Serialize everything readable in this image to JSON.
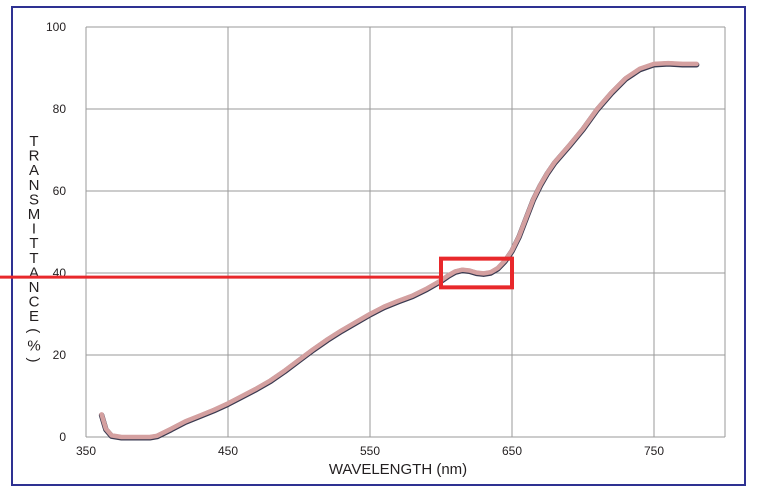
{
  "chart_data": {
    "type": "line",
    "title": "",
    "xlabel": "WAVELENGTH (nm)",
    "ylabel_letters": [
      "T",
      "R",
      "A",
      "N",
      "S",
      "M",
      "I",
      "T",
      "T",
      "A",
      "N",
      "C",
      "E",
      "(",
      "%",
      ")"
    ],
    "xlim": [
      350,
      800
    ],
    "ylim": [
      0,
      100
    ],
    "xticks": [
      "350",
      "450",
      "550",
      "650",
      "750"
    ],
    "yticks": [
      "0",
      "20",
      "40",
      "60",
      "80",
      "100"
    ],
    "grid": true,
    "series": [
      {
        "line_color": "#d4a0a0",
        "shadow_color": "#3a3a50",
        "points": [
          [
            361,
            5.5
          ],
          [
            364,
            2
          ],
          [
            368,
            0.4
          ],
          [
            375,
            0
          ],
          [
            385,
            0
          ],
          [
            395,
            0
          ],
          [
            400,
            0.3
          ],
          [
            410,
            2
          ],
          [
            420,
            3.8
          ],
          [
            430,
            5.2
          ],
          [
            440,
            6.6
          ],
          [
            450,
            8.2
          ],
          [
            460,
            10
          ],
          [
            470,
            11.8
          ],
          [
            480,
            13.8
          ],
          [
            490,
            16.2
          ],
          [
            500,
            18.8
          ],
          [
            510,
            21.4
          ],
          [
            520,
            23.8
          ],
          [
            530,
            26
          ],
          [
            540,
            28
          ],
          [
            550,
            30
          ],
          [
            560,
            31.8
          ],
          [
            570,
            33.2
          ],
          [
            580,
            34.5
          ],
          [
            590,
            36.2
          ],
          [
            600,
            38.2
          ],
          [
            605,
            39.4
          ],
          [
            610,
            40.4
          ],
          [
            615,
            40.8
          ],
          [
            620,
            40.6
          ],
          [
            625,
            40.1
          ],
          [
            630,
            39.9
          ],
          [
            635,
            40.2
          ],
          [
            640,
            41.2
          ],
          [
            645,
            43
          ],
          [
            650,
            45.5
          ],
          [
            655,
            49
          ],
          [
            660,
            53.5
          ],
          [
            665,
            58
          ],
          [
            670,
            61.5
          ],
          [
            675,
            64.5
          ],
          [
            680,
            67
          ],
          [
            690,
            71
          ],
          [
            700,
            75.2
          ],
          [
            710,
            80
          ],
          [
            720,
            84
          ],
          [
            730,
            87.5
          ],
          [
            740,
            89.8
          ],
          [
            750,
            91
          ],
          [
            760,
            91.2
          ],
          [
            770,
            91
          ],
          [
            780,
            91
          ]
        ]
      }
    ],
    "annotations": {
      "highlight_box": {
        "x0": 600,
        "x1": 650,
        "y0": 36.5,
        "y1": 43.5,
        "color": "#e8282b"
      },
      "reference_line": {
        "y": 39,
        "x_to": 600,
        "color": "#e8282b"
      }
    }
  }
}
